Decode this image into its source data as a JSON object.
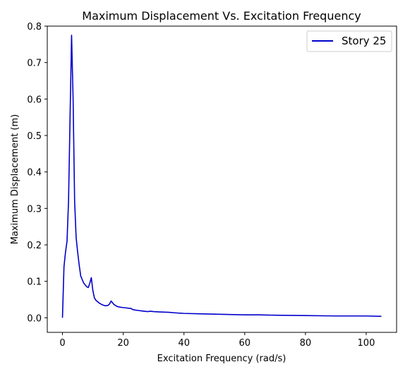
{
  "chart_data": {
    "type": "line",
    "title": "Maximum Displacement Vs. Excitation Frequency",
    "xlabel": "Excitation Frequency (rad/s)",
    "ylabel": "Maximum Displacement (m)",
    "xlim": [
      -5,
      110
    ],
    "ylim": [
      -0.04,
      0.8
    ],
    "xticks": [
      0,
      20,
      40,
      60,
      80,
      100
    ],
    "yticks": [
      0.0,
      0.1,
      0.2,
      0.3,
      0.4,
      0.5,
      0.6,
      0.7,
      0.8
    ],
    "xtick_labels": [
      "0",
      "20",
      "40",
      "60",
      "80",
      "100"
    ],
    "ytick_labels": [
      "0.0",
      "0.1",
      "0.2",
      "0.3",
      "0.4",
      "0.5",
      "0.6",
      "0.7",
      "0.8"
    ],
    "grid": false,
    "legend_position": "top-right",
    "series": [
      {
        "name": "Story 25",
        "color": "#0000cc",
        "x": [
          0.0,
          0.5,
          1.0,
          1.5,
          2.0,
          2.5,
          3.0,
          3.5,
          4.0,
          4.5,
          5.0,
          5.5,
          6.0,
          7.0,
          8.0,
          8.5,
          9.0,
          9.5,
          10.0,
          10.5,
          11.0,
          12.0,
          13.0,
          14.0,
          15.0,
          15.5,
          16.0,
          17.0,
          18.0,
          19.0,
          20.0,
          21.0,
          22.0,
          22.5,
          23.0,
          24.0,
          25.0,
          26.0,
          27.0,
          28.0,
          29.0,
          30.0,
          32.0,
          35.0,
          38.0,
          40.0,
          45.0,
          50.0,
          55.0,
          60.0,
          65.0,
          70.0,
          80.0,
          90.0,
          100.0,
          105.0
        ],
        "y": [
          0.0,
          0.14,
          0.18,
          0.21,
          0.32,
          0.55,
          0.775,
          0.6,
          0.32,
          0.22,
          0.18,
          0.145,
          0.115,
          0.095,
          0.085,
          0.083,
          0.095,
          0.11,
          0.075,
          0.055,
          0.048,
          0.041,
          0.036,
          0.033,
          0.034,
          0.038,
          0.046,
          0.036,
          0.031,
          0.029,
          0.028,
          0.027,
          0.026,
          0.026,
          0.023,
          0.021,
          0.02,
          0.019,
          0.018,
          0.017,
          0.018,
          0.017,
          0.016,
          0.015,
          0.013,
          0.012,
          0.011,
          0.01,
          0.009,
          0.008,
          0.008,
          0.007,
          0.006,
          0.005,
          0.005,
          0.004
        ]
      }
    ]
  }
}
